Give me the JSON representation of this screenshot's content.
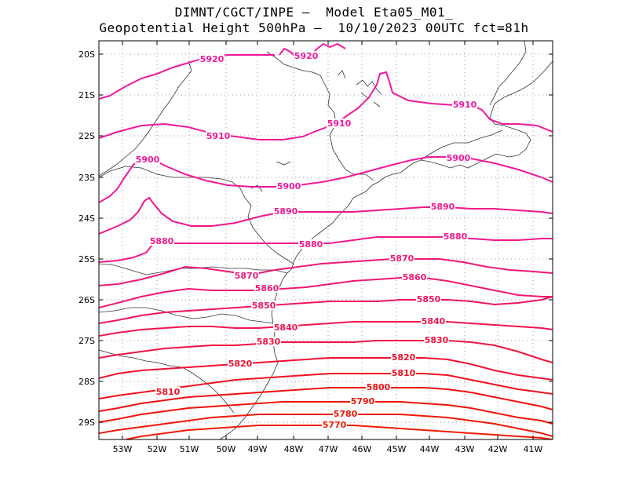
{
  "title_line1": "DIMNT/CGCT/INPE —  Model Eta05_M01_",
  "title_line2": "Geopotential Height 500hPa —  10/10/2023 00UTC fct=81h",
  "lat_ticks": [
    "20S",
    "21S",
    "22S",
    "23S",
    "24S",
    "25S",
    "26S",
    "27S",
    "28S",
    "29S"
  ],
  "lon_ticks": [
    "53W",
    "52W",
    "51W",
    "50W",
    "49W",
    "48W",
    "47W",
    "46W",
    "45W",
    "44W",
    "43W",
    "42W",
    "41W"
  ],
  "contours": [
    {
      "value": 5920,
      "color": "#f0189c",
      "labels": [
        "5920",
        "5920"
      ]
    },
    {
      "value": 5910,
      "color": "#f0189c",
      "labels": [
        "5910",
        "5910",
        "5910"
      ]
    },
    {
      "value": 5900,
      "color": "#f0189c",
      "labels": [
        "5900",
        "5900",
        "5900"
      ]
    },
    {
      "value": 5890,
      "color": "#f0188c",
      "labels": [
        "5890",
        "5890"
      ]
    },
    {
      "value": 5880,
      "color": "#f0188c",
      "labels": [
        "5880",
        "5880",
        "5880"
      ]
    },
    {
      "value": 5870,
      "color": "#f01878",
      "labels": [
        "5870",
        "5870"
      ]
    },
    {
      "value": 5860,
      "color": "#f01870",
      "labels": [
        "5860",
        "5860"
      ]
    },
    {
      "value": 5850,
      "color": "#f01460",
      "labels": [
        "5850",
        "5850"
      ]
    },
    {
      "value": 5840,
      "color": "#f01450",
      "labels": [
        "5840",
        "5840"
      ]
    },
    {
      "value": 5830,
      "color": "#f01440",
      "labels": [
        "5830",
        "5830"
      ]
    },
    {
      "value": 5820,
      "color": "#f01030",
      "labels": [
        "5820",
        "5820"
      ]
    },
    {
      "value": 5810,
      "color": "#f01020",
      "labels": [
        "5810",
        "5810"
      ]
    },
    {
      "value": 5800,
      "color": "#f01010",
      "labels": [
        "5800"
      ]
    },
    {
      "value": 5790,
      "color": "#f01408",
      "labels": [
        "5790"
      ]
    },
    {
      "value": 5780,
      "color": "#f01808",
      "labels": [
        "5780"
      ]
    },
    {
      "value": 5770,
      "color": "#f01c04",
      "labels": [
        "5770"
      ]
    }
  ]
}
